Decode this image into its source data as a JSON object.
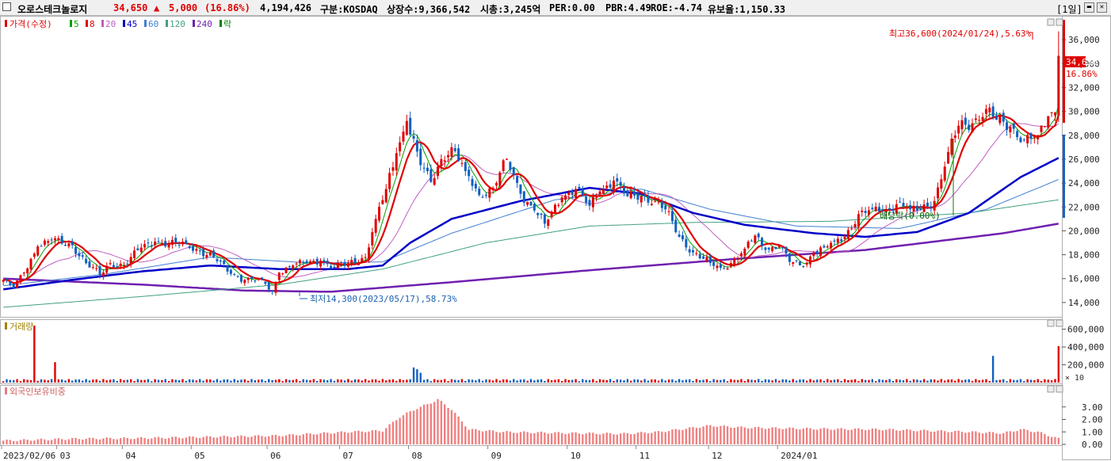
{
  "header": {
    "name": "오로스테크놀로지",
    "price": "34,650",
    "change_arrow": "▲",
    "change": "5,000",
    "change_pct": "(16.86%)",
    "volume": "4,194,426",
    "market": "구분:KOSDAQ",
    "shares": "상장수:9,366,542",
    "mktcap": "시총:3,245억",
    "per": "PER:0.00",
    "pbr": "PBR:4.49",
    "roe": "ROE:-4.74",
    "reserve": "유보율:1,150.33",
    "period": "[1일]"
  },
  "legend": {
    "price_label": "가격(수정)",
    "ma": [
      {
        "label": "5",
        "color": "#00a000"
      },
      {
        "label": "8",
        "color": "#e00000"
      },
      {
        "label": "20",
        "color": "#c060c0"
      },
      {
        "label": "45",
        "color": "#0000c8"
      },
      {
        "label": "60",
        "color": "#4080d0"
      },
      {
        "label": "120",
        "color": "#40a080"
      },
      {
        "label": "240",
        "color": "#7020b0"
      }
    ],
    "drop_label": "락",
    "volume_label": "거래량",
    "foreign_label": "외국인보유비중"
  },
  "annotations": {
    "high": "최고36,600(2024/01/24),5.63%",
    "low": "최저14,300(2023/05/17),58.73%",
    "rights": "배당락(0.00%)"
  },
  "price_tag": "34,650",
  "pct_tag": "16.86%",
  "x_labels": [
    "2023/02/06",
    "03",
    "04",
    "05",
    "06",
    "07",
    "08",
    "09",
    "10",
    "11",
    "12",
    "2024/01"
  ],
  "chart_data": {
    "type": "candlestick",
    "price_axis": {
      "min": 12800,
      "max": 38000,
      "ticks": [
        14000,
        16000,
        18000,
        20000,
        22000,
        24000,
        26000,
        28000,
        30000,
        32000,
        34000,
        36000
      ]
    },
    "price_tick_labels": [
      "14,000",
      "16,000",
      "18,000",
      "20,000",
      "22,000",
      "24,000",
      "26,000",
      "28,000",
      "30,000",
      "32,000",
      "34,000",
      "36,000"
    ],
    "volume_axis": {
      "max": 650000,
      "ticks": [
        200000,
        400000,
        600000
      ],
      "unit_label": "× 10"
    },
    "volume_tick_labels": [
      "200,000",
      "400,000",
      "600,000"
    ],
    "foreign_axis": {
      "max": 4.0,
      "ticks": [
        0,
        1,
        2,
        3
      ]
    },
    "foreign_tick_labels": [
      "0.00",
      "1.00",
      "2.00",
      "3.00"
    ],
    "close_anchors": [
      [
        0,
        15900
      ],
      [
        3,
        15200
      ],
      [
        6,
        16500
      ],
      [
        10,
        18700
      ],
      [
        14,
        19200
      ],
      [
        20,
        18800
      ],
      [
        24,
        17300
      ],
      [
        28,
        16300
      ],
      [
        31,
        17300
      ],
      [
        35,
        17100
      ],
      [
        40,
        18600
      ],
      [
        44,
        19100
      ],
      [
        48,
        18900
      ],
      [
        53,
        18900
      ],
      [
        57,
        18300
      ],
      [
        61,
        17800
      ],
      [
        66,
        16400
      ],
      [
        70,
        15900
      ],
      [
        75,
        15900
      ],
      [
        78,
        14900
      ],
      [
        80,
        16500
      ],
      [
        84,
        17100
      ],
      [
        88,
        17300
      ],
      [
        92,
        17500
      ],
      [
        96,
        16900
      ],
      [
        100,
        17300
      ],
      [
        105,
        17800
      ],
      [
        108,
        21000
      ],
      [
        111,
        23500
      ],
      [
        114,
        26500
      ],
      [
        117,
        29200
      ],
      [
        121,
        25500
      ],
      [
        124,
        24100
      ],
      [
        127,
        26000
      ],
      [
        130,
        27000
      ],
      [
        134,
        25000
      ],
      [
        138,
        23000
      ],
      [
        142,
        23600
      ],
      [
        146,
        26000
      ],
      [
        150,
        23100
      ],
      [
        154,
        21700
      ],
      [
        157,
        20600
      ],
      [
        162,
        22800
      ],
      [
        166,
        23500
      ],
      [
        170,
        22100
      ],
      [
        173,
        23300
      ],
      [
        177,
        24200
      ],
      [
        181,
        22900
      ],
      [
        185,
        22900
      ],
      [
        189,
        22500
      ],
      [
        192,
        21800
      ],
      [
        196,
        19500
      ],
      [
        200,
        18200
      ],
      [
        205,
        17300
      ],
      [
        208,
        16900
      ],
      [
        211,
        17300
      ],
      [
        215,
        18500
      ],
      [
        218,
        19600
      ],
      [
        221,
        18400
      ],
      [
        225,
        18800
      ],
      [
        228,
        17400
      ],
      [
        232,
        17000
      ],
      [
        235,
        18200
      ],
      [
        238,
        18600
      ],
      [
        241,
        19100
      ],
      [
        244,
        19500
      ],
      [
        248,
        21400
      ],
      [
        252,
        21800
      ],
      [
        256,
        21800
      ],
      [
        260,
        22400
      ],
      [
        263,
        21800
      ],
      [
        266,
        21800
      ],
      [
        270,
        22500
      ],
      [
        274,
        26600
      ],
      [
        277,
        28800
      ],
      [
        281,
        29000
      ],
      [
        285,
        30200
      ],
      [
        288,
        29300
      ],
      [
        292,
        28700
      ],
      [
        296,
        27600
      ],
      [
        300,
        28000
      ],
      [
        303,
        29600
      ],
      [
        305,
        29900
      ],
      [
        306,
        34650
      ]
    ],
    "high_low": {
      "high": 36600,
      "high_date": "2024/01/24",
      "low": 14300,
      "low_date": "2023/05/17"
    },
    "month_starts": [
      0,
      16,
      35,
      55,
      77,
      98,
      118,
      141,
      164,
      184,
      205,
      225
    ],
    "volume_spikes": [
      [
        9,
        640000
      ],
      [
        15,
        230000
      ],
      [
        119,
        170000
      ],
      [
        120,
        150000
      ],
      [
        121,
        110000
      ],
      [
        287,
        300000
      ],
      [
        306,
        410000
      ]
    ],
    "foreign_anchors": [
      [
        0,
        0.3
      ],
      [
        20,
        0.45
      ],
      [
        40,
        0.5
      ],
      [
        60,
        0.6
      ],
      [
        80,
        0.7
      ],
      [
        100,
        1.0
      ],
      [
        110,
        1.1
      ],
      [
        115,
        2.2
      ],
      [
        120,
        2.9
      ],
      [
        123,
        3.2
      ],
      [
        126,
        3.6
      ],
      [
        130,
        2.8
      ],
      [
        135,
        1.2
      ],
      [
        145,
        1.0
      ],
      [
        165,
        0.9
      ],
      [
        180,
        0.85
      ],
      [
        190,
        1.0
      ],
      [
        205,
        1.5
      ],
      [
        215,
        1.35
      ],
      [
        235,
        1.25
      ],
      [
        255,
        1.2
      ],
      [
        280,
        1.0
      ],
      [
        290,
        0.9
      ],
      [
        295,
        1.2
      ],
      [
        300,
        1.0
      ],
      [
        306,
        0.45
      ]
    ],
    "ma_smooth": {
      "45": [
        [
          0,
          15100
        ],
        [
          20,
          15900
        ],
        [
          40,
          16600
        ],
        [
          60,
          17100
        ],
        [
          80,
          16800
        ],
        [
          100,
          16800
        ],
        [
          110,
          17100
        ],
        [
          118,
          19000
        ],
        [
          130,
          21000
        ],
        [
          150,
          22500
        ],
        [
          170,
          23600
        ],
        [
          185,
          23100
        ],
        [
          200,
          21500
        ],
        [
          215,
          20500
        ],
        [
          235,
          19800
        ],
        [
          250,
          19500
        ],
        [
          265,
          19900
        ],
        [
          280,
          21500
        ],
        [
          295,
          24500
        ],
        [
          306,
          26100
        ]
      ],
      "60": [
        [
          0,
          15400
        ],
        [
          30,
          16400
        ],
        [
          60,
          17800
        ],
        [
          90,
          17300
        ],
        [
          110,
          17400
        ],
        [
          130,
          19800
        ],
        [
          160,
          22600
        ],
        [
          185,
          23500
        ],
        [
          205,
          21800
        ],
        [
          230,
          20400
        ],
        [
          260,
          20200
        ],
        [
          285,
          21800
        ],
        [
          306,
          24300
        ]
      ],
      "120": [
        [
          0,
          13600
        ],
        [
          40,
          14500
        ],
        [
          80,
          15500
        ],
        [
          110,
          16800
        ],
        [
          140,
          19000
        ],
        [
          170,
          20400
        ],
        [
          200,
          20700
        ],
        [
          240,
          20800
        ],
        [
          280,
          21500
        ],
        [
          306,
          22600
        ]
      ],
      "240": [
        [
          0,
          16000
        ],
        [
          40,
          15500
        ],
        [
          70,
          15000
        ],
        [
          95,
          14900
        ],
        [
          130,
          15700
        ],
        [
          170,
          16700
        ],
        [
          210,
          17600
        ],
        [
          250,
          18400
        ],
        [
          290,
          19800
        ],
        [
          306,
          20600
        ]
      ]
    }
  }
}
